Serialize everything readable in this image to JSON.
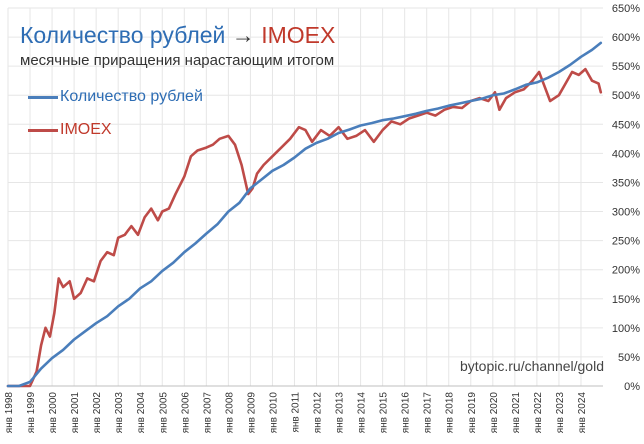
{
  "title_part_a": "Количество рублей",
  "title_arrow": "→",
  "title_part_b": "IMOEX",
  "subtitle": "месячные приращения нарастающим итогом",
  "watermark": "bytopic.ru/channel/gold",
  "colors": {
    "rubles": "#4a7ebb",
    "imoex": "#be4b48",
    "grid": "#e6e6e6"
  },
  "chart_data": {
    "type": "line",
    "title": "Количество рублей → IMOEX",
    "subtitle": "месячные приращения нарастающим итогом",
    "y_unit": "%",
    "ylim": [
      0,
      650
    ],
    "y_ticks": [
      0,
      50,
      100,
      150,
      200,
      250,
      300,
      350,
      400,
      450,
      500,
      550,
      600,
      650
    ],
    "y_tick_labels": [
      "0%",
      "50%",
      "100%",
      "150%",
      "200%",
      "250%",
      "300%",
      "350%",
      "400%",
      "450%",
      "500%",
      "550%",
      "600%",
      "650%"
    ],
    "xlim": [
      1998.0,
      2025.0
    ],
    "x_tick_labels": [
      "янв 1998",
      "янв 1999",
      "янв 2000",
      "янв 2001",
      "янв 2002",
      "янв 2003",
      "янв 2004",
      "янв 2005",
      "янв 2006",
      "янв 2007",
      "янв 2008",
      "янв 2009",
      "янв 2010",
      "янв 2011",
      "янв 2012",
      "янв 2013",
      "янв 2014",
      "янв 2015",
      "янв 2016",
      "янв 2017",
      "янв 2018",
      "янв 2019",
      "янв 2020",
      "янв 2021",
      "янв 2022",
      "янв 2023",
      "янв 2024"
    ],
    "x_tick_years": [
      1998,
      1999,
      2000,
      2001,
      2002,
      2003,
      2004,
      2005,
      2006,
      2007,
      2008,
      2009,
      2010,
      2011,
      2012,
      2013,
      2014,
      2015,
      2016,
      2017,
      2018,
      2019,
      2020,
      2021,
      2022,
      2023,
      2024
    ],
    "grid": true,
    "legend_position": "top-left",
    "series": [
      {
        "name": "Количество рублей",
        "color": "#4a7ebb",
        "x": [
          1998.0,
          1998.5,
          1999.0,
          1999.5,
          2000.0,
          2000.5,
          2001.0,
          2001.5,
          2002.0,
          2002.5,
          2003.0,
          2003.5,
          2004.0,
          2004.5,
          2005.0,
          2005.5,
          2006.0,
          2006.5,
          2007.0,
          2007.5,
          2008.0,
          2008.5,
          2009.0,
          2009.5,
          2010.0,
          2010.5,
          2011.0,
          2011.5,
          2012.0,
          2012.5,
          2013.0,
          2013.5,
          2014.0,
          2014.5,
          2015.0,
          2015.5,
          2016.0,
          2016.5,
          2017.0,
          2017.5,
          2018.0,
          2018.5,
          2019.0,
          2019.5,
          2020.0,
          2020.5,
          2021.0,
          2021.5,
          2022.0,
          2022.5,
          2023.0,
          2023.5,
          2024.0,
          2024.5,
          2024.9
        ],
        "values": [
          0,
          0,
          7,
          30,
          48,
          62,
          80,
          94,
          108,
          120,
          137,
          150,
          168,
          180,
          198,
          212,
          230,
          245,
          262,
          278,
          300,
          315,
          340,
          355,
          370,
          380,
          393,
          408,
          418,
          425,
          435,
          441,
          448,
          452,
          457,
          460,
          464,
          468,
          473,
          477,
          482,
          486,
          490,
          494,
          500,
          503,
          510,
          518,
          522,
          530,
          540,
          552,
          566,
          578,
          590
        ]
      },
      {
        "name": "IMOEX",
        "color": "#be4b48",
        "x": [
          1998.0,
          1998.3,
          1998.6,
          1999.0,
          1999.3,
          1999.5,
          1999.7,
          1999.9,
          2000.1,
          2000.3,
          2000.5,
          2000.8,
          2001.0,
          2001.3,
          2001.6,
          2001.9,
          2002.2,
          2002.5,
          2002.8,
          2003.0,
          2003.3,
          2003.6,
          2003.9,
          2004.2,
          2004.5,
          2004.8,
          2005.0,
          2005.3,
          2005.6,
          2006.0,
          2006.3,
          2006.6,
          2007.0,
          2007.3,
          2007.6,
          2008.0,
          2008.3,
          2008.6,
          2008.9,
          2009.1,
          2009.3,
          2009.6,
          2010.0,
          2010.4,
          2010.8,
          2011.2,
          2011.5,
          2011.8,
          2012.2,
          2012.6,
          2013.0,
          2013.4,
          2013.8,
          2014.2,
          2014.6,
          2015.0,
          2015.4,
          2015.8,
          2016.2,
          2016.6,
          2017.0,
          2017.4,
          2017.8,
          2018.2,
          2018.6,
          2019.0,
          2019.4,
          2019.8,
          2020.1,
          2020.3,
          2020.6,
          2021.0,
          2021.4,
          2021.8,
          2022.0,
          2022.1,
          2022.3,
          2022.6,
          2023.0,
          2023.3,
          2023.6,
          2023.9,
          2024.2,
          2024.5,
          2024.8,
          2024.9
        ],
        "values": [
          0,
          0,
          0,
          0,
          25,
          70,
          100,
          85,
          125,
          185,
          170,
          180,
          150,
          160,
          185,
          180,
          215,
          230,
          225,
          255,
          260,
          275,
          260,
          290,
          305,
          285,
          300,
          305,
          330,
          360,
          395,
          405,
          410,
          415,
          425,
          430,
          415,
          380,
          330,
          340,
          365,
          380,
          395,
          410,
          425,
          445,
          440,
          420,
          440,
          430,
          445,
          425,
          430,
          440,
          420,
          440,
          455,
          450,
          460,
          465,
          470,
          465,
          475,
          480,
          478,
          490,
          495,
          490,
          505,
          475,
          495,
          505,
          510,
          525,
          535,
          540,
          520,
          490,
          500,
          520,
          540,
          535,
          545,
          525,
          520,
          505
        ]
      }
    ]
  }
}
